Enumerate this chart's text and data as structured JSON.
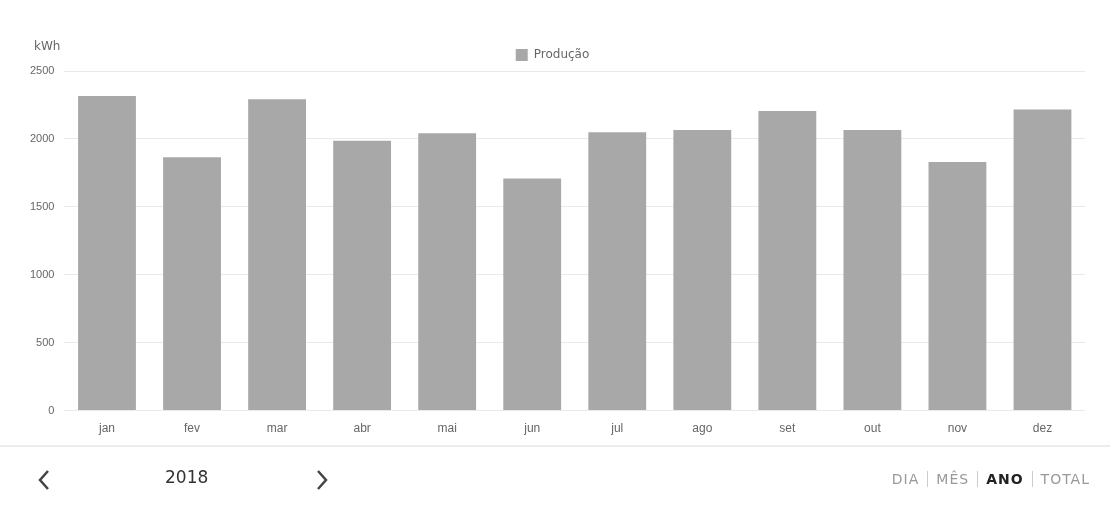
{
  "chart_data": {
    "type": "bar",
    "ylabel": "kWh",
    "categories": [
      "jan",
      "fev",
      "mar",
      "abr",
      "mai",
      "jun",
      "jul",
      "ago",
      "set",
      "out",
      "nov",
      "dez"
    ],
    "series": [
      {
        "name": "Produção",
        "color": "#a8a8a8",
        "values": [
          2316,
          1865,
          2292,
          1986,
          2041,
          1708,
          2049,
          2065,
          2205,
          2065,
          1830,
          2216
        ]
      }
    ],
    "ylim": [
      0,
      2500
    ],
    "yticks": [
      0,
      500,
      1000,
      1500,
      2000,
      2500
    ],
    "grid": "y",
    "legend": "top",
    "annotations": [
      "2018",
      "DIA",
      "MÊS",
      "ANO",
      "TOTAL"
    ]
  }
}
